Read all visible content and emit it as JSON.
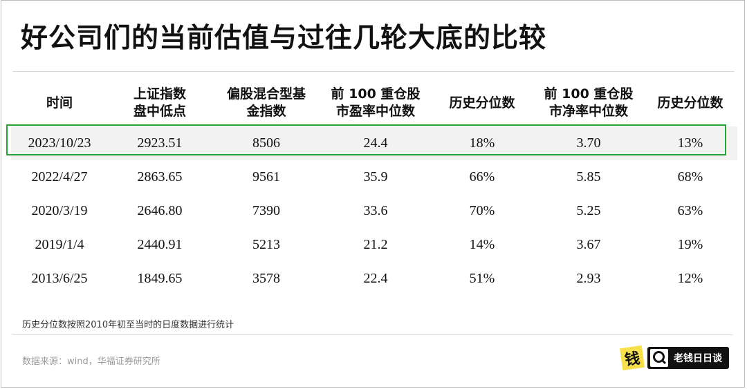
{
  "title": "好公司们的当前估值与过往几轮大底的比较",
  "table": {
    "headers": [
      [
        "时间"
      ],
      [
        "上证指数",
        "盘中低点"
      ],
      [
        "偏股混合型基",
        "金指数"
      ],
      [
        "前 100 重仓股",
        "市盈率中位数"
      ],
      [
        "历史分位数"
      ],
      [
        "前 100 重仓股",
        "市净率中位数"
      ],
      [
        "历史分位数"
      ]
    ],
    "rows": [
      [
        "2023/10/23",
        "2923.51",
        "8506",
        "24.4",
        "18%",
        "3.70",
        "13%"
      ],
      [
        "2022/4/27",
        "2863.65",
        "9561",
        "35.9",
        "66%",
        "5.85",
        "68%"
      ],
      [
        "2020/3/19",
        "2646.80",
        "7390",
        "33.6",
        "70%",
        "5.25",
        "63%"
      ],
      [
        "2019/1/4",
        "2440.91",
        "5213",
        "21.2",
        "14%",
        "3.67",
        "19%"
      ],
      [
        "2013/6/25",
        "1849.65",
        "3578",
        "22.4",
        "51%",
        "2.93",
        "12%"
      ]
    ],
    "highlight_color": "#2aa335"
  },
  "note": "历史分位数按照2010年初至当时的日度数据进行统计",
  "source": "数据来源：wind，华福证券研究所",
  "brand": {
    "mark_char": "钱",
    "name": "老钱日日谈",
    "mark_color": "#f7e14a"
  }
}
